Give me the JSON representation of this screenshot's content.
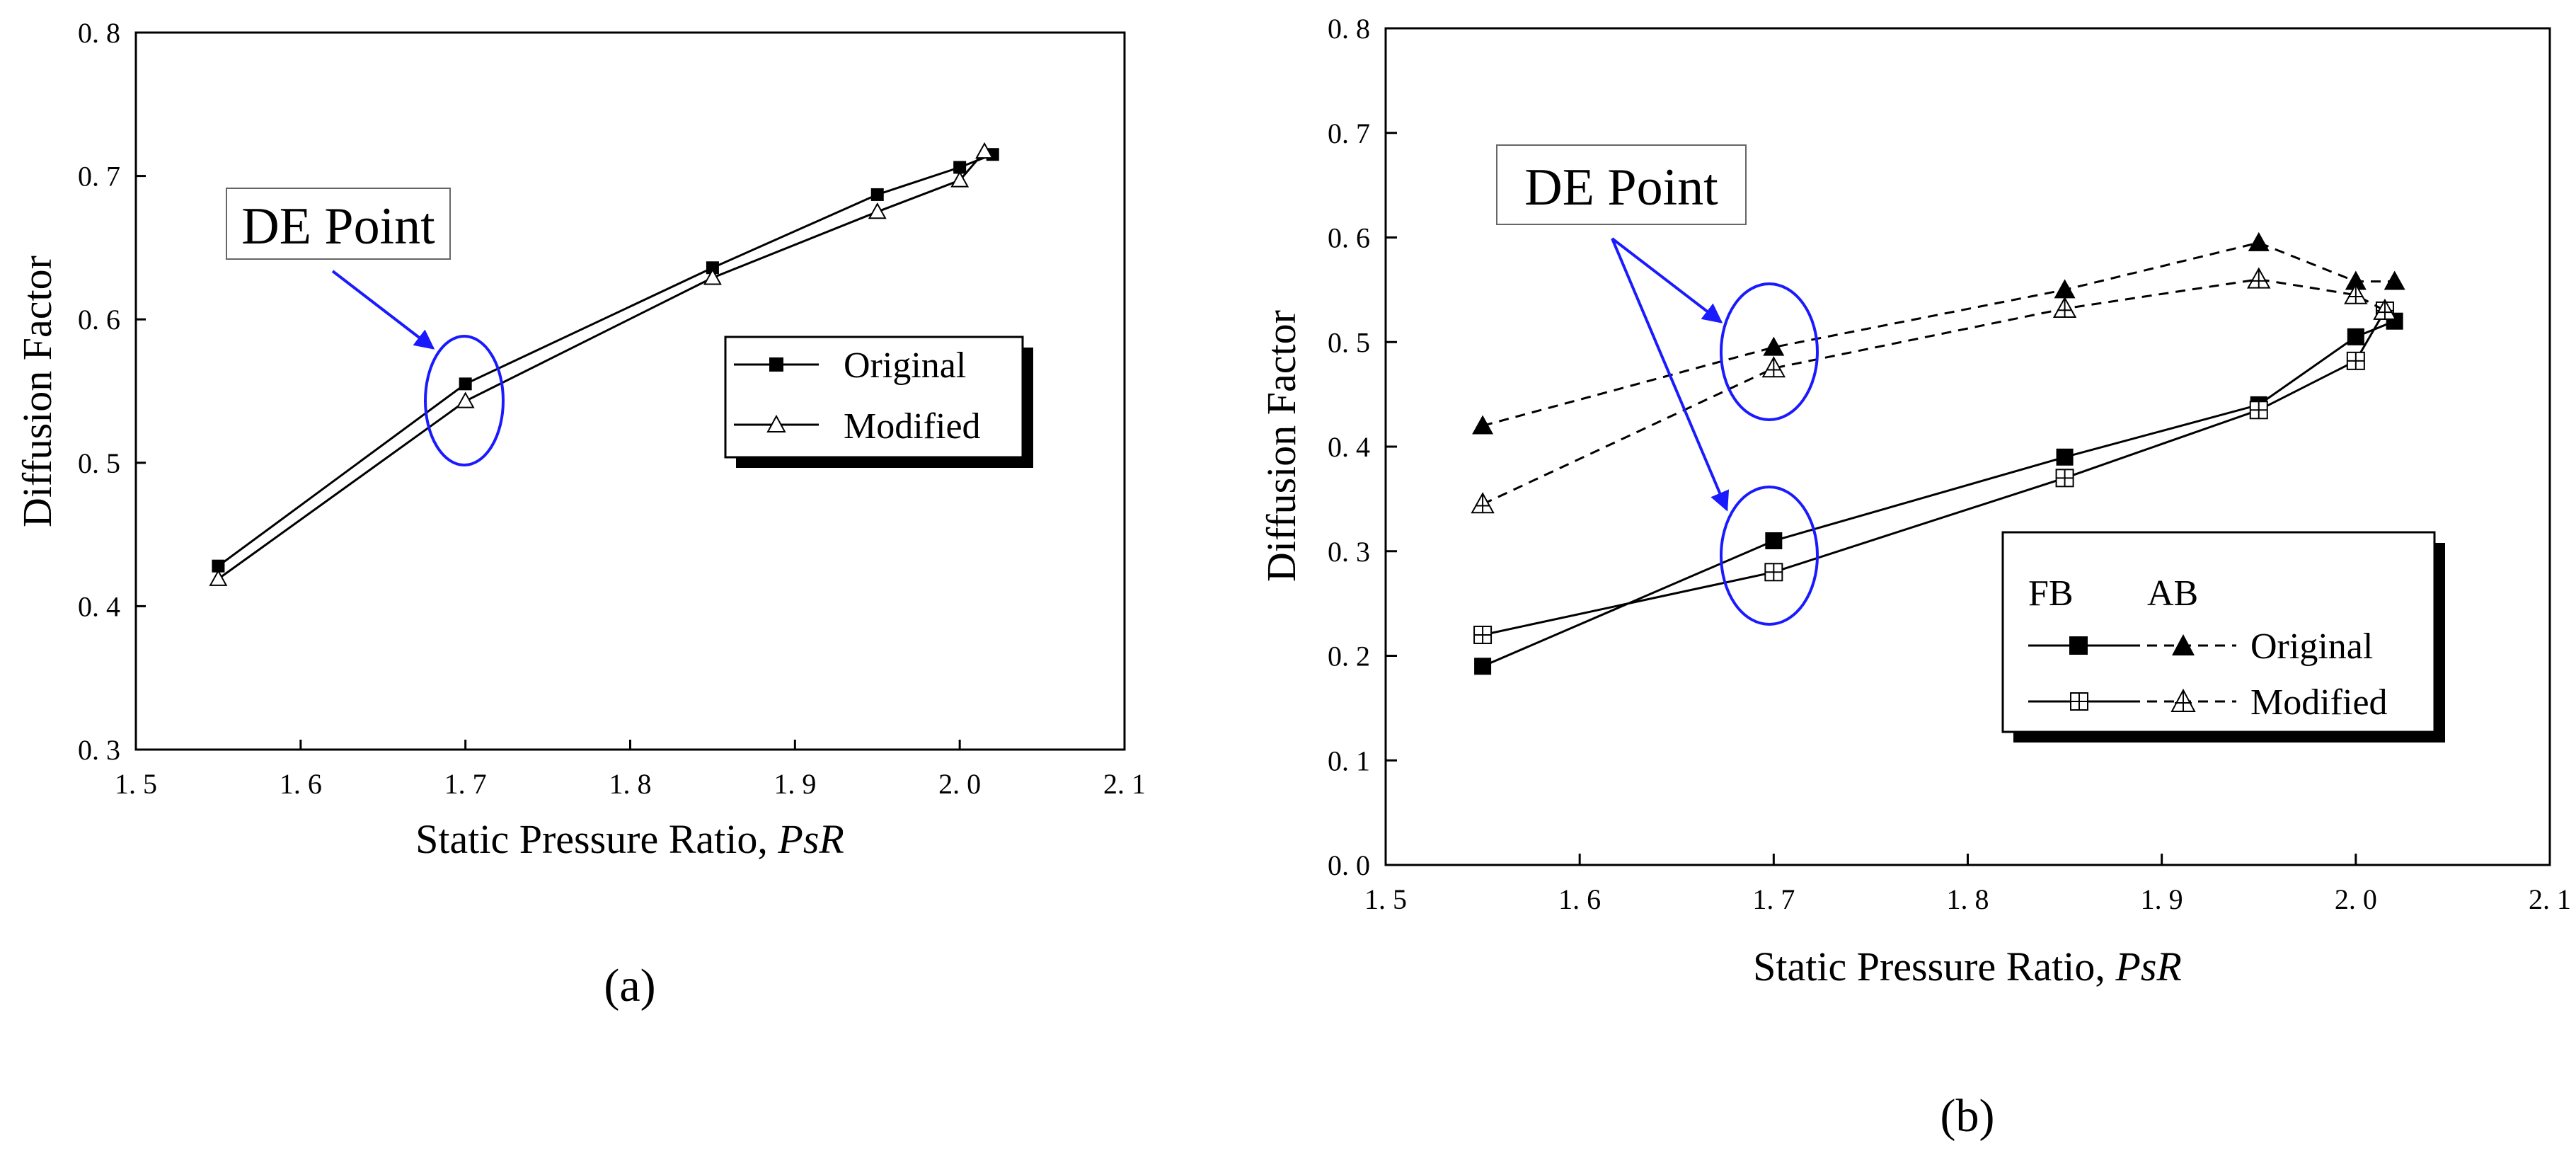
{
  "chart_data": [
    {
      "type": "line",
      "panel_label": "(a)",
      "xlabel": "Static Pressure Ratio, PsR",
      "ylabel": "Diffusion Factor",
      "xlim": [
        1.5,
        2.1
      ],
      "ylim": [
        0.3,
        0.8
      ],
      "xticks": [
        "1. 5",
        "1. 6",
        "1. 7",
        "1. 8",
        "1. 9",
        "2. 0",
        "2. 1"
      ],
      "yticks": [
        "0. 3",
        "0. 4",
        "0. 5",
        "0. 6",
        "0. 7",
        "0. 8"
      ],
      "grid": false,
      "legend_position": "center-right",
      "series": [
        {
          "name": "Original",
          "marker": "filled-square",
          "line": "solid",
          "x": [
            1.55,
            1.7,
            1.85,
            1.95,
            2.0,
            2.02
          ],
          "y": [
            0.428,
            0.555,
            0.636,
            0.687,
            0.706,
            0.715
          ]
        },
        {
          "name": "Modified",
          "marker": "open-triangle",
          "line": "solid",
          "x": [
            1.55,
            1.7,
            1.85,
            1.95,
            2.0,
            2.015
          ],
          "y": [
            0.419,
            0.543,
            0.629,
            0.675,
            0.697,
            0.717
          ]
        }
      ],
      "annotations": [
        {
          "text": "DE Point",
          "target_x": 1.7,
          "target_y": 0.549
        }
      ]
    },
    {
      "type": "line",
      "panel_label": "(b)",
      "xlabel": "Static Pressure Ratio, PsR",
      "ylabel": "Diffusion Factor",
      "xlim": [
        1.5,
        2.1
      ],
      "ylim": [
        0.0,
        0.8
      ],
      "xticks": [
        "1. 5",
        "1. 6",
        "1. 7",
        "1. 8",
        "1. 9",
        "2. 0",
        "2. 1"
      ],
      "yticks": [
        "0. 0",
        "0. 1",
        "0. 2",
        "0. 3",
        "0. 4",
        "0. 5",
        "0. 6",
        "0. 7",
        "0. 8"
      ],
      "grid": false,
      "legend_position": "bottom-right",
      "legend_headers": [
        "FB",
        "AB"
      ],
      "legend_rows": [
        "Original",
        "Modified"
      ],
      "series": [
        {
          "name": "Original",
          "group": "FB",
          "marker": "filled-square",
          "line": "solid",
          "x": [
            1.55,
            1.7,
            1.85,
            1.95,
            2.0,
            2.02
          ],
          "y": [
            0.19,
            0.31,
            0.39,
            0.44,
            0.505,
            0.52
          ]
        },
        {
          "name": "Modified",
          "group": "FB",
          "marker": "crossed-square",
          "line": "solid",
          "x": [
            1.55,
            1.7,
            1.85,
            1.95,
            2.0,
            2.015
          ],
          "y": [
            0.22,
            0.28,
            0.37,
            0.435,
            0.482,
            0.53
          ]
        },
        {
          "name": "Original",
          "group": "AB",
          "marker": "filled-triangle",
          "line": "dashed",
          "x": [
            1.55,
            1.7,
            1.85,
            1.95,
            2.0,
            2.02
          ],
          "y": [
            0.42,
            0.495,
            0.55,
            0.595,
            0.558,
            0.558
          ]
        },
        {
          "name": "Modified",
          "group": "AB",
          "marker": "crossed-triangle",
          "line": "dashed",
          "x": [
            1.55,
            1.7,
            1.85,
            1.95,
            2.0,
            2.015
          ],
          "y": [
            0.345,
            0.475,
            0.532,
            0.56,
            0.545,
            0.53
          ]
        }
      ],
      "annotations": [
        {
          "text": "DE Point",
          "targets": [
            {
              "x": 1.7,
              "y": 0.485
            },
            {
              "x": 1.7,
              "y": 0.295
            }
          ]
        }
      ]
    }
  ]
}
